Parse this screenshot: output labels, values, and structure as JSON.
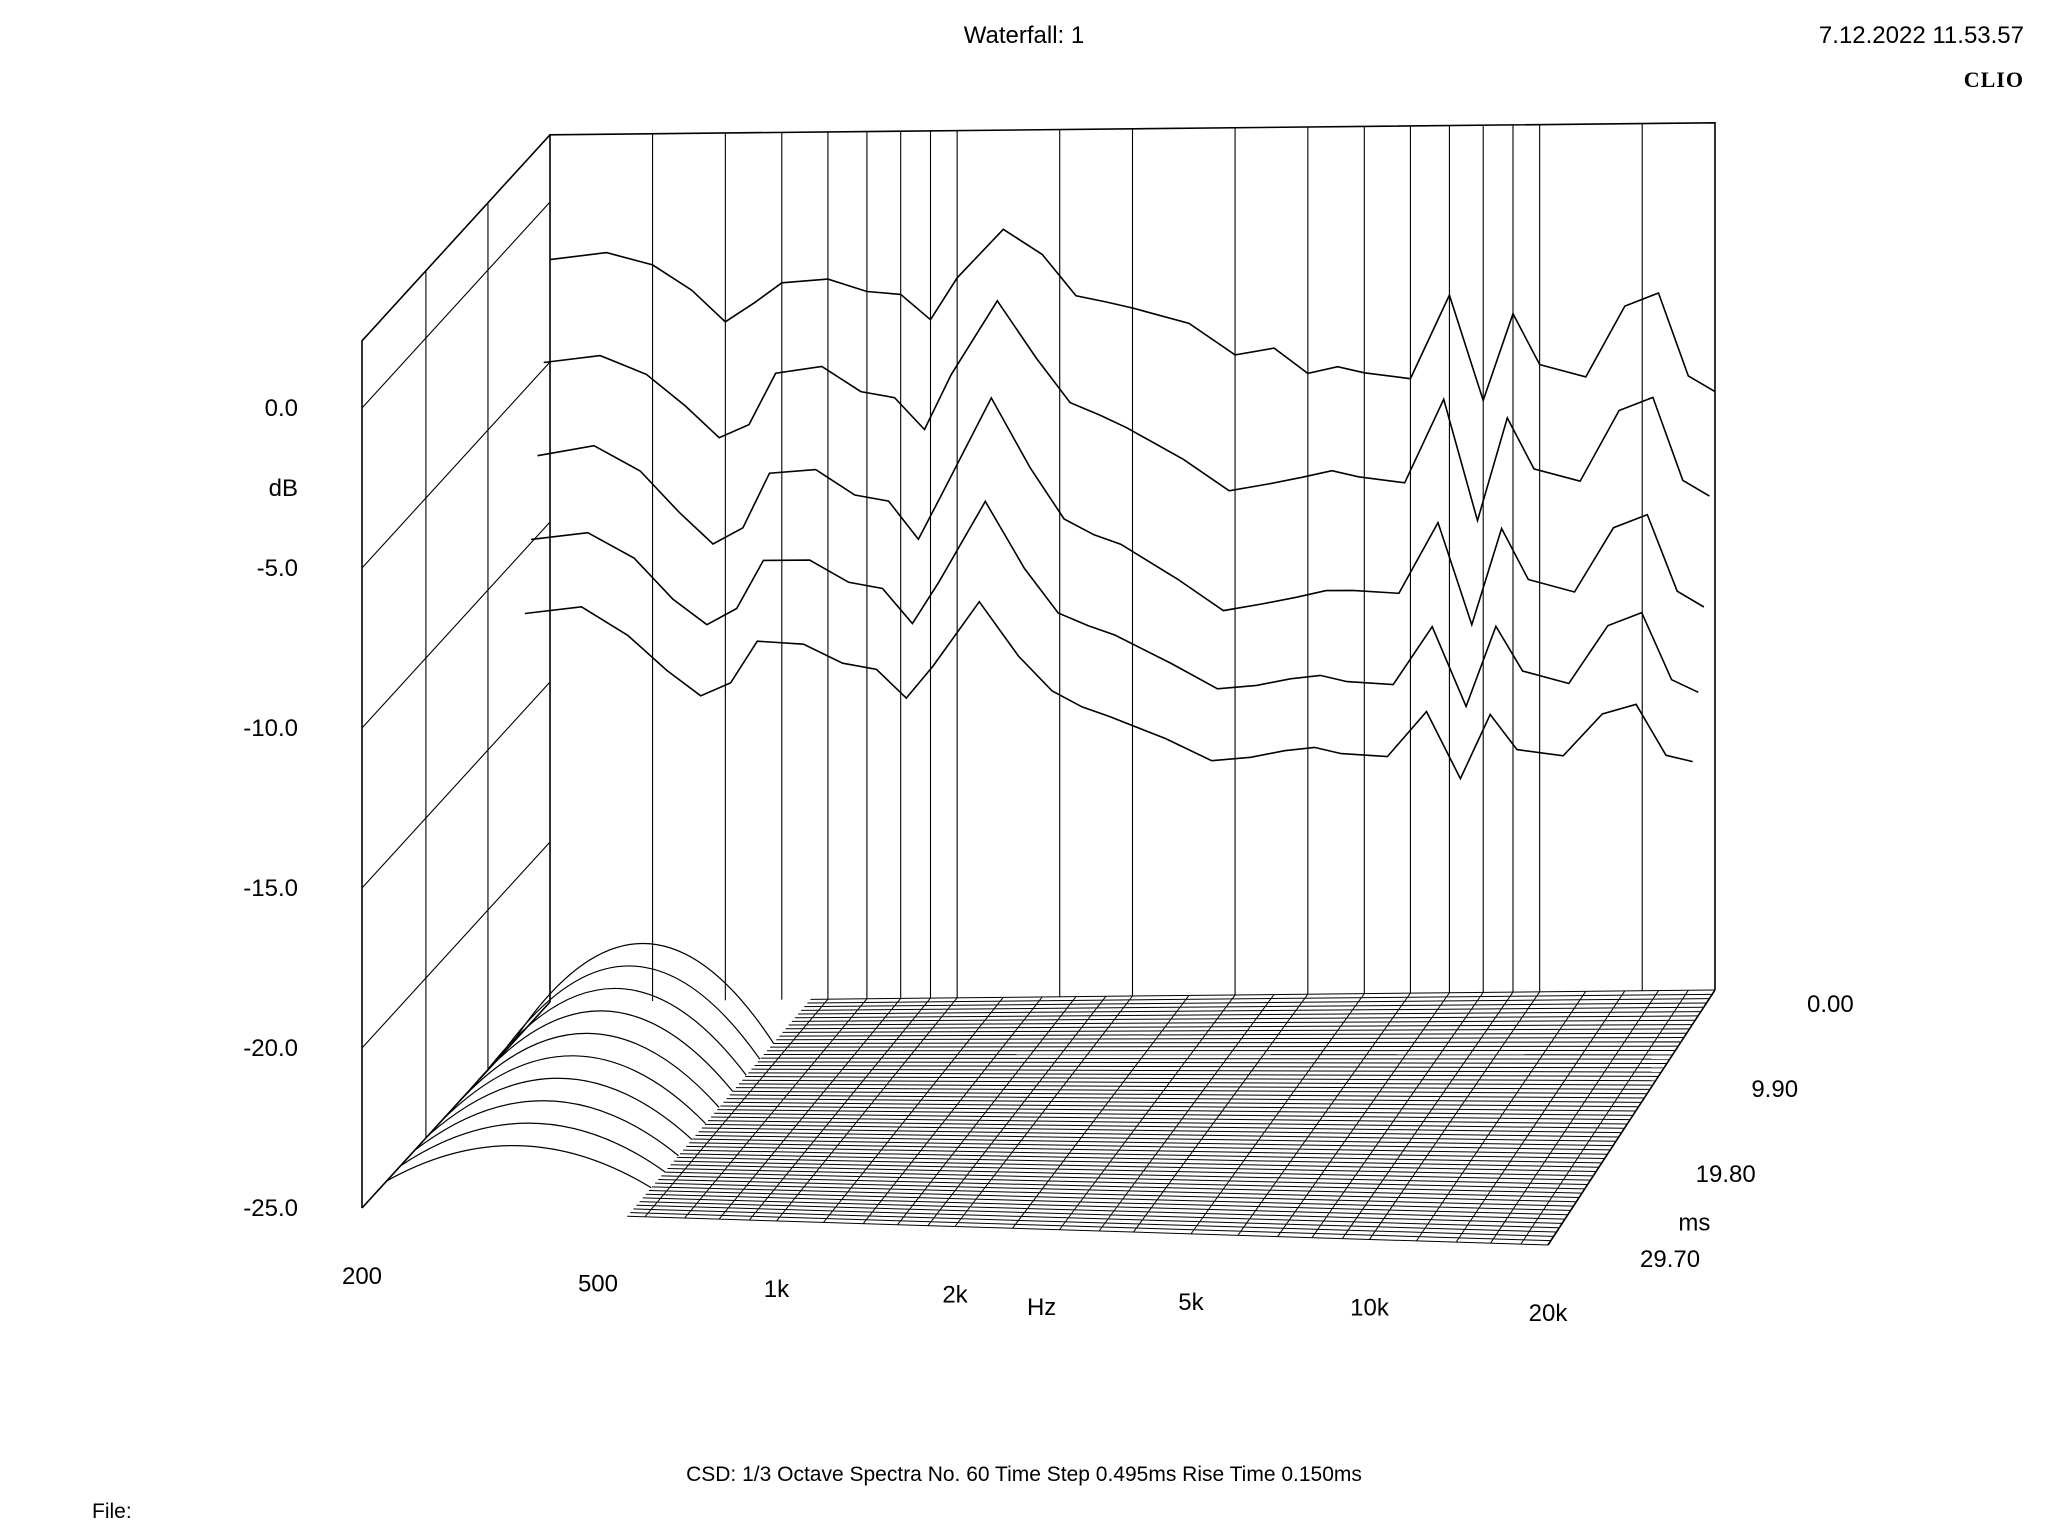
{
  "header": {
    "title": "Waterfall: 1",
    "timestamp": "7.12.2022 11.53.57",
    "brand": "CLIO"
  },
  "footer": {
    "settings": "CSD:   1/3 Octave   Spectra No. 60   Time Step 0.495ms   Rise Time 0.150ms",
    "file_label": "File:"
  },
  "chart_data": {
    "type": "waterfall",
    "title": "Waterfall: 1",
    "x_axis": {
      "label": "Hz",
      "scale": "log",
      "range": [
        200,
        20000
      ],
      "ticks": [
        200,
        500,
        1000,
        2000,
        5000,
        10000,
        20000
      ],
      "tick_labels": [
        "200",
        "500",
        "1k",
        "2k",
        "5k",
        "10k",
        "20k"
      ]
    },
    "y_axis": {
      "label": "dB",
      "range": [
        -25,
        0
      ],
      "ticks": [
        0,
        -5,
        -10,
        -15,
        -20,
        -25
      ],
      "tick_labels": [
        "0.0",
        "-5.0",
        "-10.0",
        "-15.0",
        "-20.0",
        "-25.0"
      ]
    },
    "z_axis": {
      "label": "ms",
      "range": [
        0,
        29.7
      ],
      "ticks": [
        0,
        9.9,
        19.8,
        29.7
      ],
      "tick_labels": [
        "0.00",
        "9.90",
        "19.80",
        "29.70"
      ]
    },
    "settings": {
      "analysis": "CSD",
      "smoothing": "1/3 Octave",
      "spectra_count": 60,
      "time_step_ms": 0.495,
      "rise_time_ms": 0.15
    },
    "freq_points_hz": [
      200,
      250,
      300,
      350,
      400,
      450,
      500,
      600,
      700,
      800,
      900,
      1000,
      1200,
      1400,
      1600,
      1800,
      2000,
      2500,
      3000,
      3500,
      4000,
      4500,
      5000,
      6000,
      7000,
      8000,
      9000,
      10000,
      12000,
      14000,
      16000,
      18000,
      20000
    ],
    "series": [
      {
        "time_ms": 0.0,
        "values_db": [
          -1.8,
          -1.6,
          -2.0,
          -2.8,
          -3.8,
          -3.2,
          -2.6,
          -2.5,
          -2.9,
          -3.0,
          -3.8,
          -2.5,
          -1.0,
          -1.8,
          -3.1,
          -3.3,
          -3.5,
          -4.0,
          -5.0,
          -4.8,
          -5.6,
          -5.4,
          -5.6,
          -5.8,
          -3.2,
          -6.5,
          -3.8,
          -5.4,
          -5.8,
          -3.6,
          -3.2,
          -5.8,
          -6.3
        ]
      },
      {
        "time_ms": 0.99,
        "values_db": [
          -4.8,
          -4.6,
          -5.2,
          -6.2,
          -7.2,
          -6.8,
          -5.2,
          -5.0,
          -5.8,
          -6.0,
          -7.0,
          -5.3,
          -3.0,
          -4.8,
          -6.2,
          -6.6,
          -7.0,
          -8.0,
          -9.0,
          -8.8,
          -8.6,
          -8.4,
          -8.6,
          -8.8,
          -6.2,
          -10.0,
          -6.8,
          -8.4,
          -8.8,
          -6.6,
          -6.2,
          -8.8,
          -9.3
        ]
      },
      {
        "time_ms": 1.98,
        "values_db": [
          -7.5,
          -7.2,
          -8.0,
          -9.3,
          -10.3,
          -9.8,
          -8.1,
          -8.0,
          -8.8,
          -9.0,
          -10.2,
          -8.6,
          -5.8,
          -8.0,
          -9.6,
          -10.1,
          -10.4,
          -11.5,
          -12.5,
          -12.3,
          -12.1,
          -11.9,
          -11.9,
          -12.0,
          -9.8,
          -13.0,
          -10.0,
          -11.6,
          -12.0,
          -10.0,
          -9.6,
          -12.0,
          -12.5
        ]
      },
      {
        "time_ms": 2.97,
        "values_db": [
          -9.9,
          -9.7,
          -10.5,
          -11.8,
          -12.6,
          -12.1,
          -10.6,
          -10.6,
          -11.3,
          -11.5,
          -12.6,
          -11.3,
          -8.8,
          -10.9,
          -12.3,
          -12.7,
          -13.0,
          -13.9,
          -14.7,
          -14.6,
          -14.4,
          -14.3,
          -14.5,
          -14.6,
          -12.8,
          -15.3,
          -12.8,
          -14.2,
          -14.6,
          -12.8,
          -12.4,
          -14.5,
          -14.9
        ]
      },
      {
        "time_ms": 3.96,
        "values_db": [
          -12.0,
          -11.8,
          -12.7,
          -13.8,
          -14.6,
          -14.2,
          -12.9,
          -13.0,
          -13.6,
          -13.8,
          -14.7,
          -13.7,
          -11.7,
          -13.4,
          -14.5,
          -15.0,
          -15.3,
          -16.0,
          -16.7,
          -16.6,
          -16.4,
          -16.3,
          -16.5,
          -16.6,
          -15.2,
          -17.3,
          -15.3,
          -16.4,
          -16.6,
          -15.3,
          -15.0,
          -16.6,
          -16.8
        ]
      }
    ]
  }
}
